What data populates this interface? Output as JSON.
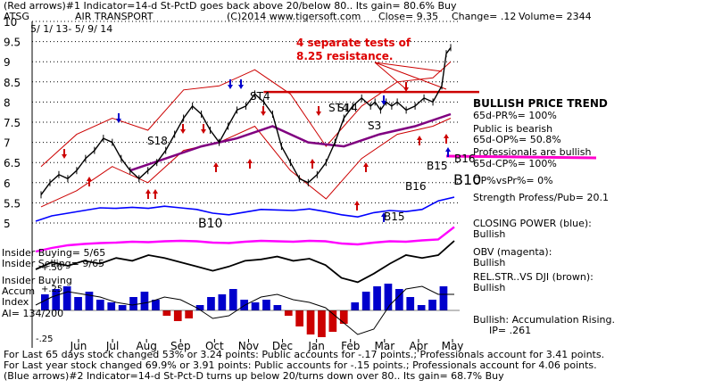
{
  "header": {
    "line1": "(Red arrows)#1 Indicator=14-d St-PctD goes back above 20/below 80.. Its gain= 80.6% Buy",
    "ticker": "ATSG",
    "company": "AIR TRANSPORT",
    "copyright": "(C)2014 www.tigersoft.com",
    "close": "Close=  9.35",
    "change": "Change= .12",
    "volume": "Volume= 2344",
    "date_range": "5/ 1/ 13- 5/ 9/ 14"
  },
  "annotation": {
    "resistance_line1": "4 separate tests of",
    "resistance_line2": "8.25 resistance."
  },
  "right_panel": {
    "trend_title": "BULLISH PRICE TREND",
    "pr65": "65d-PR%= 100%",
    "public_bearish": "Public is bearish",
    "op65": "65d-OP%= 50.8%",
    "pros_bullish": "Professionals are bullish",
    "cp65": "65d-CP%= 100%",
    "op_vs_pr": "OP%vsPr%=  0%",
    "strength": "Strength Profess/Pub= 20.1",
    "closing_power_1": "CLOSING POWER (blue):",
    "closing_power_2": "Bullish",
    "obv_1": "OBV (magenta):",
    "obv_2": "Bullish",
    "relstr_1": "REL.STR..VS DJI (brown):",
    "relstr_2": "Bullish",
    "accum_1": "Bullish: Accumulation Rising.",
    "accum_2": "IP=  .261"
  },
  "left_labels": {
    "insider_buying": "Insider Buying= 5/65",
    "insider_selling": "Insider Selling= 9/65",
    "insider_buying2": "Insider Buying",
    "accum": "Accum",
    "index": "Index",
    "ai": "AI= 134/200",
    "plus50": "+.50",
    "plus25": "+.25",
    "minus25": "-.25"
  },
  "signals": [
    "ST4",
    "S18",
    "ST4",
    "S14",
    "S3",
    "B10",
    "B15",
    "B15",
    "B16",
    "B10",
    "B16"
  ],
  "footer": {
    "line1": "For Last 65 days stock changed  53% or  3.24 points:  Public accounts for -.17 points.;  Professionals account for  3.41 points.",
    "line2": "For Last year stock changed  69.9% or  3.91 points:  Public accounts for -.15 points.;  Professionals account for  4.06 points.",
    "line3": "(Blue arrows)#2 Indicator=14-d St-Pct-D turns up below 20/turns down over 80.. Its gain= 68.7% Buy"
  },
  "colors": {
    "price": "#000000",
    "bands": "#cc0000",
    "ma": "#800080",
    "closing_power": "#0000ff",
    "obv": "#ff00ff",
    "relstr": "#000000",
    "accum_pos": "#0000cc",
    "accum_neg": "#cc0000"
  },
  "chart_data": {
    "type": "line",
    "title": "ATSG  AIR TRANSPORT",
    "yticks": [
      "10",
      "9.5",
      "9",
      "8.5",
      "8",
      "7.5",
      "7",
      "6.5",
      "6",
      "5.5",
      "5"
    ],
    "ylim": [
      5,
      10
    ],
    "months": [
      "Jun",
      "Jul",
      "Aug",
      "Sep",
      "Oct",
      "Nov",
      "Dec",
      "Jan",
      "Feb",
      "Mar",
      "Apr",
      "May"
    ],
    "resistance_level": 8.25,
    "series": [
      {
        "name": "price",
        "x": [
          0,
          8,
          16,
          24,
          32,
          40,
          48,
          56,
          64,
          72,
          80,
          88,
          96,
          104,
          112,
          120,
          128,
          136,
          144,
          152,
          160,
          168,
          176,
          184,
          192,
          200,
          208,
          216,
          224,
          232,
          240,
          248,
          256,
          264,
          272,
          280,
          288,
          296,
          300,
          305,
          310,
          315,
          320,
          328,
          336,
          344,
          352,
          360,
          364,
          368
        ],
        "values": [
          5.7,
          6.0,
          6.2,
          6.1,
          6.3,
          6.6,
          6.8,
          7.1,
          7.0,
          6.6,
          6.3,
          6.1,
          6.3,
          6.5,
          6.8,
          7.2,
          7.6,
          7.9,
          7.7,
          7.3,
          7.0,
          7.4,
          7.8,
          7.9,
          8.2,
          8.0,
          7.7,
          6.9,
          6.5,
          6.1,
          6.0,
          6.2,
          6.5,
          7.0,
          7.6,
          7.9,
          8.1,
          7.9,
          8.0,
          7.8,
          8.0,
          7.9,
          8.0,
          7.8,
          7.9,
          8.1,
          8.0,
          8.4,
          9.2,
          9.35
        ]
      },
      {
        "name": "upper-band",
        "x": [
          0,
          32,
          64,
          96,
          128,
          160,
          192,
          224,
          256,
          288,
          320,
          352,
          368
        ],
        "values": [
          6.4,
          7.2,
          7.6,
          7.3,
          8.3,
          8.4,
          8.8,
          8.2,
          6.9,
          7.9,
          8.5,
          8.6,
          9.0
        ]
      },
      {
        "name": "lower-band",
        "x": [
          0,
          32,
          64,
          96,
          128,
          160,
          192,
          224,
          256,
          288,
          320,
          352,
          368
        ],
        "values": [
          5.4,
          5.8,
          6.4,
          6.0,
          6.8,
          7.0,
          7.4,
          6.3,
          5.6,
          6.6,
          7.2,
          7.4,
          7.6
        ]
      },
      {
        "name": "moving-average",
        "x": [
          80,
          112,
          144,
          176,
          208,
          240,
          272,
          304,
          336,
          368
        ],
        "values": [
          6.3,
          6.6,
          6.9,
          7.1,
          7.4,
          7.0,
          6.9,
          7.2,
          7.4,
          7.7
        ]
      }
    ]
  }
}
